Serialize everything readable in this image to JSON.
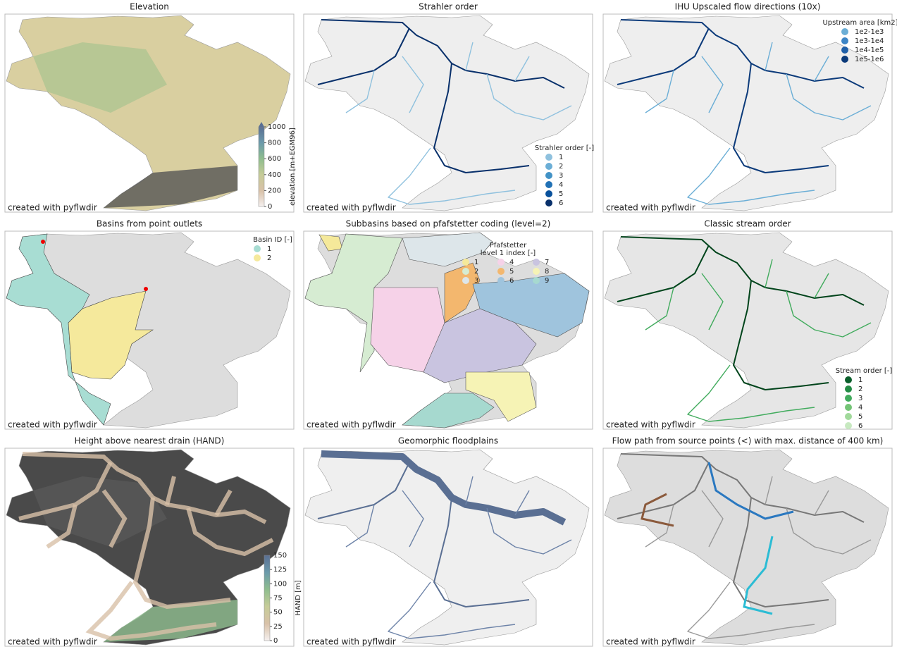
{
  "panels": [
    {
      "title": "Elevation",
      "credit": "created with pyflwdir",
      "colorbar": {
        "label": "elevation [m+EGM96]",
        "ticks": [
          0,
          200,
          400,
          600,
          800,
          1000
        ],
        "colors": [
          "#f5f0ef",
          "#d8c1a8",
          "#c6cc98",
          "#8fbd8e",
          "#6b9aab",
          "#5a6f93"
        ]
      }
    },
    {
      "title": "Strahler order",
      "credit": "created with pyflwdir",
      "legend": {
        "title": "Strahler order [-]",
        "items": [
          {
            "label": "1",
            "color": "#8fc1de"
          },
          {
            "label": "2",
            "color": "#6baed6"
          },
          {
            "label": "3",
            "color": "#4292c6"
          },
          {
            "label": "4",
            "color": "#2171b5"
          },
          {
            "label": "5",
            "color": "#08519c"
          },
          {
            "label": "6",
            "color": "#08306b"
          }
        ]
      }
    },
    {
      "title": "IHU Upscaled flow directions (10x)",
      "credit": "created with pyflwdir",
      "legend": {
        "title": "Upstream area [km2]",
        "items": [
          {
            "label": "1e2-1e3",
            "color": "#6baed6"
          },
          {
            "label": "1e3-1e4",
            "color": "#3d85c6"
          },
          {
            "label": "1e4-1e5",
            "color": "#1f5fa8"
          },
          {
            "label": "1e5-1e6",
            "color": "#0b3a7a"
          }
        ]
      }
    },
    {
      "title": "Basins from point outlets",
      "credit": "created with pyflwdir",
      "legend": {
        "title": "Basin ID [-]",
        "items": [
          {
            "label": "1",
            "color": "#a8ddd3"
          },
          {
            "label": "2",
            "color": "#f5e99c"
          }
        ]
      }
    },
    {
      "title": "Subbasins based on pfafstetter coding (level=2)",
      "credit": "created with pyflwdir",
      "legend": {
        "title": "Pfafstetter",
        "title2": "level 1 index [-]",
        "items": [
          {
            "label": "1",
            "color": "#f5e99a"
          },
          {
            "label": "2",
            "color": "#d6ecd2"
          },
          {
            "label": "3",
            "color": "#dde6ea"
          },
          {
            "label": "4",
            "color": "#f6d2e8"
          },
          {
            "label": "5",
            "color": "#f3b76e"
          },
          {
            "label": "6",
            "color": "#9fc4dd"
          },
          {
            "label": "7",
            "color": "#c9c4e0"
          },
          {
            "label": "8",
            "color": "#f6f3b5"
          },
          {
            "label": "9",
            "color": "#a6d9cf"
          }
        ]
      }
    },
    {
      "title": "Classic stream order",
      "credit": "created with pyflwdir",
      "legend": {
        "title": "Stream order [-]",
        "items": [
          {
            "label": "1",
            "color": "#0a5e2b"
          },
          {
            "label": "2",
            "color": "#238b45"
          },
          {
            "label": "3",
            "color": "#41ab5d"
          },
          {
            "label": "4",
            "color": "#74c476"
          },
          {
            "label": "5",
            "color": "#a1d99b"
          },
          {
            "label": "6",
            "color": "#c7e9c0"
          }
        ]
      }
    },
    {
      "title": "Height above nearest drain (HAND)",
      "credit": "created with pyflwdir",
      "colorbar": {
        "label": "HAND [m]",
        "ticks": [
          0,
          25,
          50,
          75,
          100,
          125,
          150
        ],
        "colors": [
          "#f5f0ef",
          "#d8c1a8",
          "#c6cc98",
          "#8fbd8e",
          "#6b9aab",
          "#5a6f93"
        ]
      }
    },
    {
      "title": "Geomorphic floodplains",
      "credit": "created with pyflwdir"
    },
    {
      "title": "Flow path from source points (<) with max. distance of 400 km)",
      "credit": "created with pyflwdir"
    }
  ]
}
